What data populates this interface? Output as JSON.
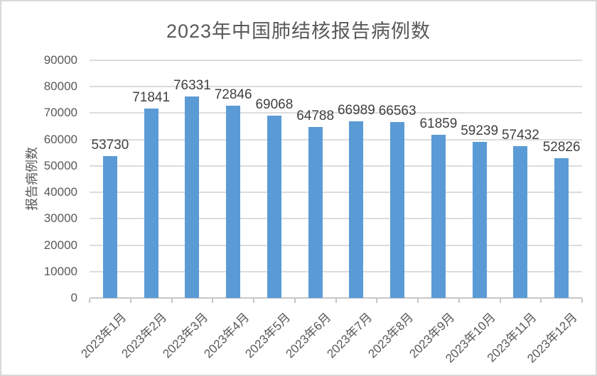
{
  "chart_data": {
    "type": "bar",
    "title": "2023年中国肺结核报告病例数",
    "xlabel": "",
    "ylabel": "报告病例数",
    "categories": [
      "2023年1月",
      "2023年2月",
      "2023年3月",
      "2023年4月",
      "2023年5月",
      "2023年6月",
      "2023年7月",
      "2023年8月",
      "2023年9月",
      "2023年10月",
      "2023年11月",
      "2023年12月"
    ],
    "values": [
      53730,
      71841,
      76331,
      72846,
      69068,
      64788,
      66989,
      66563,
      61859,
      59239,
      57432,
      52826
    ],
    "ylim": [
      0,
      90000
    ],
    "ytick_step": 10000,
    "ytick_labels": [
      "0",
      "10000",
      "20000",
      "30000",
      "40000",
      "50000",
      "60000",
      "70000",
      "80000",
      "90000"
    ],
    "grid": "horizontal",
    "legend": "none",
    "data_labels": true,
    "colors": {
      "bar": "#5B9BD5",
      "gridline": "#DCDCDC",
      "axis_line": "#C6C6C6",
      "title_text": "#595959",
      "axis_text": "#595959",
      "data_label_text": "#404040",
      "frame_border": "#D9D9D9"
    }
  }
}
